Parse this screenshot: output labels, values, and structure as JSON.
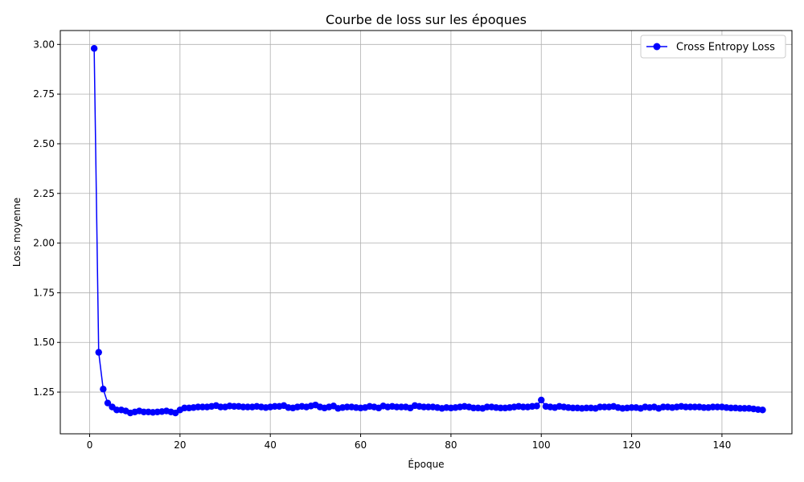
{
  "chart_data": {
    "type": "line",
    "title": "Courbe de loss sur les époques",
    "xlabel": "Époque",
    "ylabel": "Loss moyenne",
    "xlim": [
      -6.5,
      155.5
    ],
    "ylim": [
      1.04,
      3.07
    ],
    "xticks": [
      0,
      20,
      40,
      60,
      80,
      100,
      120,
      140
    ],
    "yticks": [
      1.25,
      1.5,
      1.75,
      2.0,
      2.25,
      2.5,
      2.75,
      3.0
    ],
    "ytick_labels": [
      "1.25",
      "1.50",
      "1.75",
      "2.00",
      "2.25",
      "2.50",
      "2.75",
      "3.00"
    ],
    "grid": true,
    "legend_position": "top-right",
    "series": [
      {
        "name": "Cross Entropy Loss",
        "color": "#0000ff",
        "marker": "circle",
        "x": [
          1,
          2,
          3,
          4,
          5,
          6,
          7,
          8,
          9,
          10,
          11,
          12,
          13,
          14,
          15,
          16,
          17,
          18,
          19,
          20,
          21,
          22,
          23,
          24,
          25,
          26,
          27,
          28,
          29,
          30,
          31,
          32,
          33,
          34,
          35,
          36,
          37,
          38,
          39,
          40,
          41,
          42,
          43,
          44,
          45,
          46,
          47,
          48,
          49,
          50,
          51,
          52,
          53,
          54,
          55,
          56,
          57,
          58,
          59,
          60,
          61,
          62,
          63,
          64,
          65,
          66,
          67,
          68,
          69,
          70,
          71,
          72,
          73,
          74,
          75,
          76,
          77,
          78,
          79,
          80,
          81,
          82,
          83,
          84,
          85,
          86,
          87,
          88,
          89,
          90,
          91,
          92,
          93,
          94,
          95,
          96,
          97,
          98,
          99,
          100,
          101,
          102,
          103,
          104,
          105,
          106,
          107,
          108,
          109,
          110,
          111,
          112,
          113,
          114,
          115,
          116,
          117,
          118,
          119,
          120,
          121,
          122,
          123,
          124,
          125,
          126,
          127,
          128,
          129,
          130,
          131,
          132,
          133,
          134,
          135,
          136,
          137,
          138,
          139,
          140,
          141,
          142,
          143,
          144,
          145,
          146,
          147,
          148,
          149
        ],
        "values": [
          2.98,
          1.45,
          1.265,
          1.195,
          1.175,
          1.16,
          1.16,
          1.155,
          1.145,
          1.15,
          1.155,
          1.15,
          1.15,
          1.148,
          1.15,
          1.152,
          1.155,
          1.15,
          1.145,
          1.16,
          1.17,
          1.17,
          1.172,
          1.175,
          1.175,
          1.175,
          1.178,
          1.182,
          1.175,
          1.175,
          1.18,
          1.178,
          1.178,
          1.175,
          1.175,
          1.175,
          1.178,
          1.175,
          1.172,
          1.175,
          1.178,
          1.178,
          1.182,
          1.172,
          1.17,
          1.175,
          1.178,
          1.175,
          1.18,
          1.185,
          1.175,
          1.17,
          1.175,
          1.18,
          1.168,
          1.172,
          1.175,
          1.175,
          1.172,
          1.17,
          1.172,
          1.178,
          1.175,
          1.17,
          1.18,
          1.175,
          1.178,
          1.175,
          1.175,
          1.175,
          1.17,
          1.182,
          1.178,
          1.175,
          1.175,
          1.175,
          1.172,
          1.168,
          1.172,
          1.17,
          1.172,
          1.175,
          1.178,
          1.175,
          1.17,
          1.17,
          1.168,
          1.175,
          1.175,
          1.172,
          1.17,
          1.17,
          1.172,
          1.175,
          1.178,
          1.175,
          1.175,
          1.178,
          1.18,
          1.21,
          1.178,
          1.175,
          1.172,
          1.178,
          1.175,
          1.172,
          1.17,
          1.17,
          1.168,
          1.17,
          1.17,
          1.168,
          1.175,
          1.175,
          1.175,
          1.178,
          1.172,
          1.168,
          1.17,
          1.172,
          1.172,
          1.168,
          1.175,
          1.172,
          1.175,
          1.168,
          1.175,
          1.175,
          1.172,
          1.175,
          1.178,
          1.175,
          1.175,
          1.175,
          1.175,
          1.172,
          1.172,
          1.175,
          1.175,
          1.175,
          1.172,
          1.17,
          1.17,
          1.168,
          1.168,
          1.168,
          1.165,
          1.162,
          1.16
        ]
      }
    ]
  }
}
